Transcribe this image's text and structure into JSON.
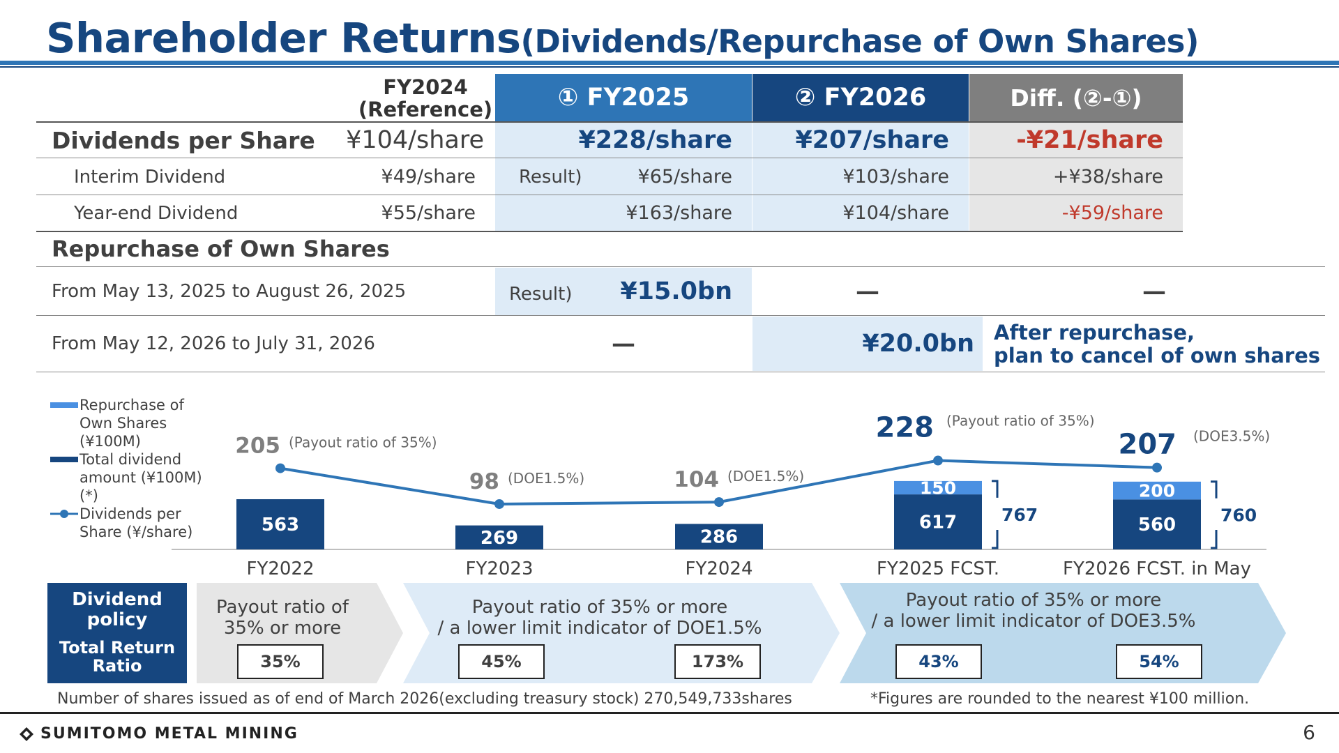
{
  "title": {
    "main": "Shareholder Returns",
    "sub": "(Dividends/Repurchase of Own Shares)"
  },
  "table": {
    "headers": {
      "ref_line1": "FY2024",
      "ref_line2": "(Reference)",
      "fy25": "① FY2025",
      "fy26": "② FY2026",
      "diff": "Diff. (②-①)"
    },
    "dps": {
      "label": "Dividends per Share",
      "ref": "¥104/share",
      "fy25": "¥228/share",
      "fy26": "¥207/share",
      "diff": "-¥21/share"
    },
    "interim": {
      "label": "Interim Dividend",
      "ref": "¥49/share",
      "fy25_tag": "Result)",
      "fy25": "¥65/share",
      "fy26": "¥103/share",
      "diff": "+¥38/share"
    },
    "yearend": {
      "label": "Year-end Dividend",
      "ref": "¥55/share",
      "fy25": "¥163/share",
      "fy26": "¥104/share",
      "diff": "-¥59/share"
    },
    "repurchase": {
      "heading": "Repurchase of Own Shares",
      "row1": {
        "period": "From May 13, 2025 to August 26, 2025",
        "tag": "Result)",
        "fy25": "¥15.0bn",
        "fy26": "—",
        "diff": "—"
      },
      "row2": {
        "period": "From May 12, 2026 to July 31, 2026",
        "fy25": "—",
        "fy26": "¥20.0bn",
        "note_line1": "After repurchase,",
        "note_line2": "plan to cancel of own shares"
      }
    }
  },
  "legend": {
    "repurchase": "Repurchase of Own Shares (¥100M)",
    "dividend": "Total dividend amount (¥100M)(*)",
    "dps": "Dividends per Share (¥/share)"
  },
  "colors": {
    "repurchase": "#4a90e2",
    "dividend": "#16467f",
    "line": "#2e75b6"
  },
  "chart_data": {
    "type": "bar",
    "categories": [
      "FY2022",
      "FY2023",
      "FY2024",
      "FY2025 FCST.",
      "FY2026 FCST. in May"
    ],
    "series": [
      {
        "name": "Total dividend amount (¥100M)(*)",
        "values": [
          563,
          269,
          286,
          617,
          560
        ]
      },
      {
        "name": "Repurchase of Own Shares (¥100M)",
        "values": [
          0,
          0,
          0,
          150,
          200
        ]
      },
      {
        "name": "Dividends per Share (¥/share)",
        "type": "line",
        "values": [
          205,
          98,
          104,
          228,
          207
        ]
      }
    ],
    "totals": [
      "",
      "",
      "",
      "767",
      "760"
    ],
    "annotations": [
      "(Payout ratio of 35%)",
      "(DOE1.5%)",
      "(DOE1.5%)",
      "(Payout ratio of 35%)",
      "(DOE3.5%)"
    ],
    "stacked": true,
    "legend_position": "left"
  },
  "policy": {
    "label_line1": "Dividend",
    "label_line2": "policy",
    "label_line3": "Total Return",
    "label_line4": "Ratio",
    "seg1_line1": "Payout ratio of",
    "seg1_line2": "35% or more",
    "seg2_line1": "Payout ratio of 35% or more",
    "seg2_line2": "/ a lower limit indicator of DOE1.5%",
    "seg3_line1": "Payout ratio of 35% or more",
    "seg3_line2": "/ a lower limit indicator of DOE3.5%",
    "ratios": [
      "35%",
      "45%",
      "173%",
      "43%",
      "54%"
    ]
  },
  "footnotes": {
    "left": "Number of shares issued as of end of March 2026(excluding treasury stock) 270,549,733shares",
    "right": "*Figures are rounded to the nearest ¥100 million."
  },
  "footer": {
    "company": "SUMITOMO METAL MINING",
    "page": "6"
  }
}
